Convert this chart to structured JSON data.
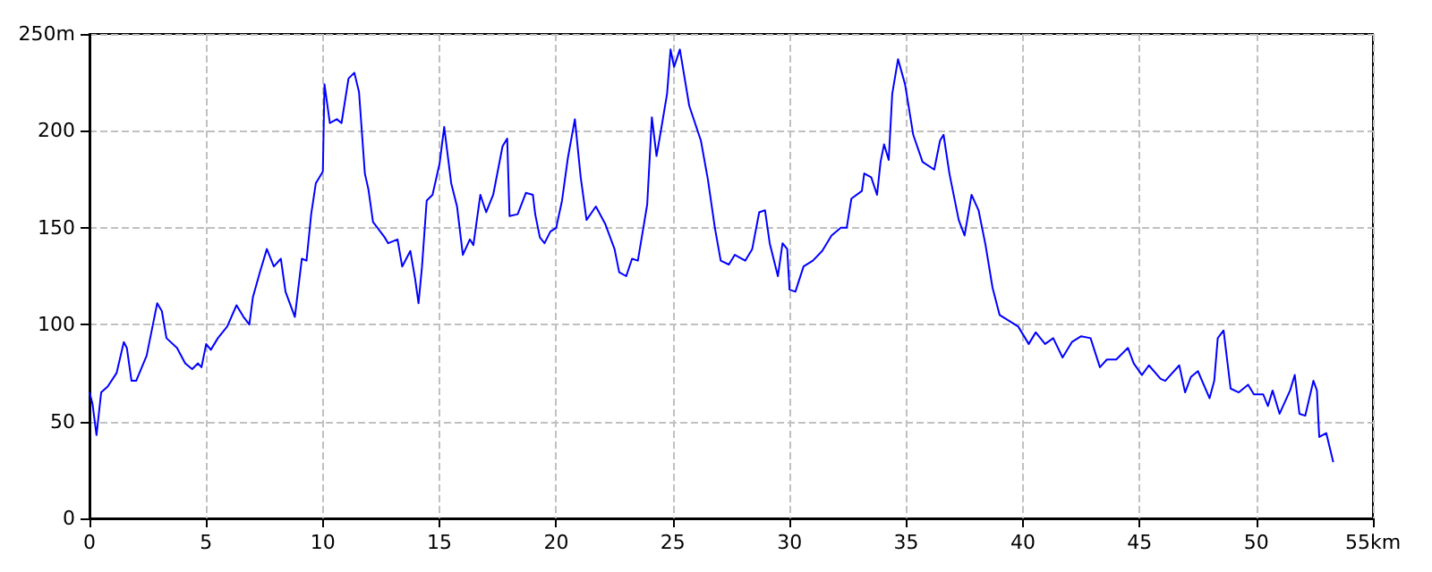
{
  "chart_data": {
    "type": "line",
    "color": "#0000ff",
    "line_style": "solid",
    "marker": "none",
    "grid": true,
    "xlim": [
      0,
      55
    ],
    "xticks": [
      0,
      5,
      10,
      15,
      20,
      25,
      30,
      35,
      40,
      45,
      50,
      {
        "value": 55,
        "label": "55km"
      }
    ],
    "ylim": [
      0,
      250
    ],
    "yticks": [
      0,
      50,
      100,
      150,
      200,
      {
        "value": 250,
        "label": "250m"
      }
    ],
    "x": [
      0,
      0.13,
      0.3,
      0.5,
      0.78,
      1.16,
      1.47,
      1.6,
      1.8,
      2.0,
      2.45,
      2.7,
      2.9,
      3.1,
      3.3,
      3.75,
      4.1,
      4.4,
      4.65,
      4.8,
      5.0,
      5.2,
      5.5,
      5.9,
      6.3,
      6.6,
      6.85,
      7.0,
      7.3,
      7.6,
      7.9,
      8.2,
      8.4,
      8.8,
      9.1,
      9.3,
      9.5,
      9.7,
      10.0,
      10.07,
      10.3,
      10.6,
      10.8,
      11.1,
      11.35,
      11.55,
      11.8,
      11.95,
      12.15,
      12.65,
      12.8,
      13.2,
      13.4,
      13.75,
      13.95,
      14.1,
      14.25,
      14.45,
      14.7,
      15.0,
      15.2,
      15.5,
      15.75,
      16.0,
      16.3,
      16.45,
      16.75,
      17.0,
      17.3,
      17.7,
      17.9,
      18.0,
      18.35,
      18.7,
      19.0,
      19.1,
      19.3,
      19.5,
      19.75,
      20.0,
      20.25,
      20.5,
      20.8,
      21.05,
      21.3,
      21.7,
      22.1,
      22.5,
      22.7,
      23.0,
      23.25,
      23.5,
      23.9,
      24.1,
      24.3,
      24.5,
      24.75,
      24.9,
      25.05,
      25.3,
      25.7,
      26.2,
      26.5,
      26.8,
      27.05,
      27.4,
      27.65,
      28.1,
      28.4,
      28.7,
      28.95,
      29.15,
      29.5,
      29.7,
      29.9,
      30.0,
      30.25,
      30.6,
      31.0,
      31.4,
      31.8,
      32.2,
      32.45,
      32.65,
      33.1,
      33.2,
      33.5,
      33.75,
      33.9,
      34.05,
      34.25,
      34.4,
      34.65,
      34.95,
      35.3,
      35.7,
      36.2,
      36.45,
      36.6,
      36.85,
      37.25,
      37.5,
      37.8,
      38.1,
      38.4,
      38.7,
      39.0,
      39.4,
      39.8,
      40.25,
      40.55,
      40.95,
      41.3,
      41.7,
      42.1,
      42.5,
      42.9,
      43.3,
      43.6,
      44.0,
      44.5,
      44.75,
      45.1,
      45.4,
      45.9,
      46.1,
      46.7,
      46.95,
      47.2,
      47.5,
      48.0,
      48.2,
      48.35,
      48.6,
      48.9,
      49.25,
      49.65,
      49.9,
      50.3,
      50.5,
      50.7,
      51.0,
      51.45,
      51.65,
      51.85,
      52.1,
      52.45,
      52.6,
      52.7,
      53.0,
      53.3
    ],
    "values": [
      65,
      59,
      43,
      65,
      68,
      75,
      91,
      88,
      71,
      71,
      84,
      99,
      111,
      107,
      93,
      88,
      80,
      77,
      80,
      78,
      90,
      87,
      93,
      99,
      110,
      104,
      100,
      114,
      127,
      139,
      130,
      134,
      117,
      104,
      134,
      133,
      157,
      173,
      179,
      224,
      204,
      206,
      204,
      227,
      230,
      220,
      178,
      170,
      153,
      145,
      142,
      144,
      130,
      138,
      124,
      111,
      130,
      164,
      167,
      183,
      202,
      173,
      161,
      136,
      144,
      141,
      167,
      158,
      167,
      192,
      196,
      156,
      157,
      168,
      167,
      157,
      145,
      142,
      148,
      150,
      164,
      186,
      206,
      176,
      154,
      161,
      152,
      139,
      127,
      125,
      134,
      133,
      162,
      207,
      187,
      201,
      219,
      242,
      233,
      242,
      213,
      195,
      175,
      150,
      133,
      131,
      136,
      133,
      139,
      158,
      159,
      142,
      125,
      142,
      139,
      118,
      117,
      130,
      133,
      138,
      146,
      150,
      150,
      165,
      169,
      178,
      176,
      167,
      184,
      193,
      185,
      219,
      237,
      224,
      198,
      184,
      180,
      195,
      198,
      178,
      154,
      146,
      167,
      159,
      141,
      119,
      105,
      102,
      99,
      90,
      96,
      90,
      93,
      83,
      91,
      94,
      93,
      78,
      82,
      82,
      88,
      80,
      74,
      79,
      72,
      71,
      79,
      65,
      73,
      76,
      62,
      71,
      93,
      97,
      67,
      65,
      69,
      64,
      64,
      58,
      66,
      54,
      66,
      74,
      54,
      53,
      71,
      66,
      42,
      44,
      29
    ]
  }
}
